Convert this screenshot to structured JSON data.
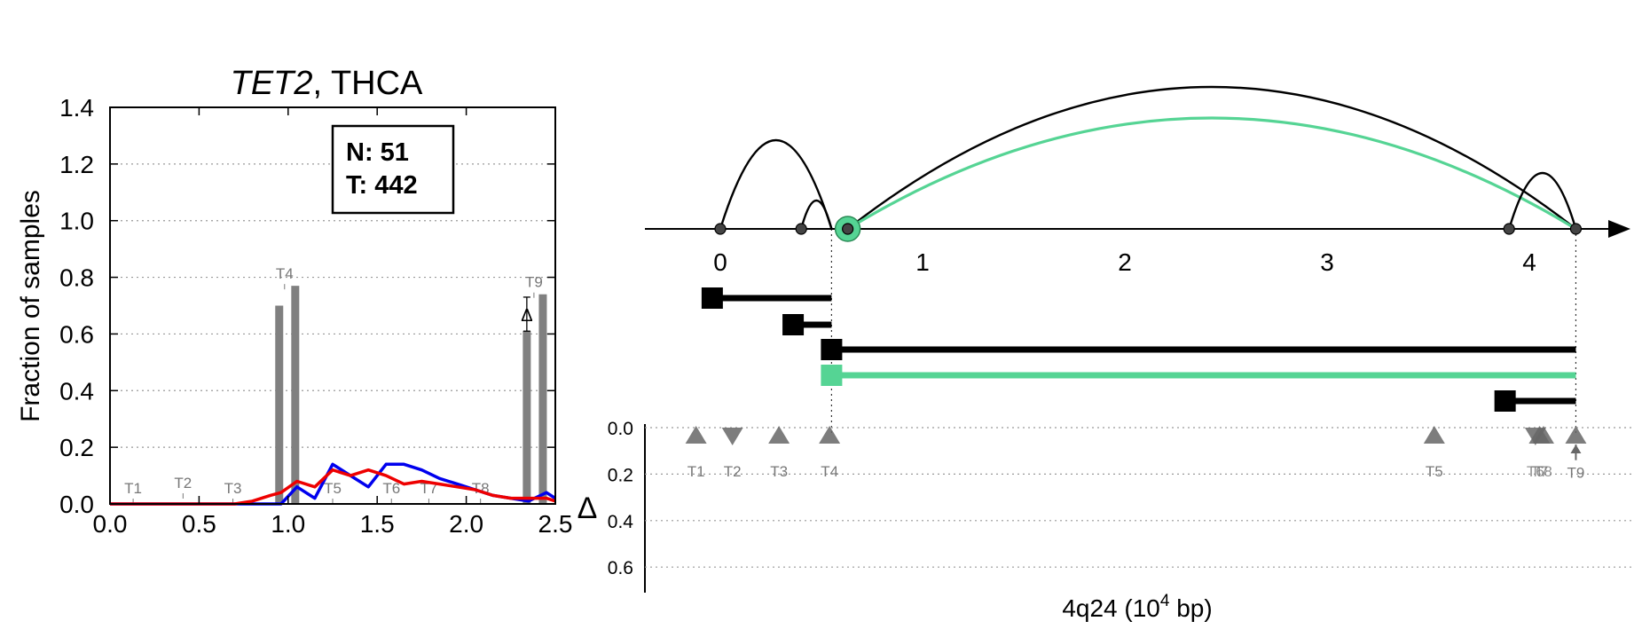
{
  "colors": {
    "bar": "#808080",
    "normal_line": "#0000ee",
    "tumor_line": "#ee0000",
    "highlight": "#55d494",
    "axis": "#000000",
    "grid": "#999999",
    "marker": "#666666",
    "marker_label": "#777777"
  },
  "chart_data": [
    {
      "type": "bar",
      "title_gene": "TET2",
      "title_rest": ", THCA",
      "ylabel": "Fraction of samples",
      "xlim": [
        0,
        2.5
      ],
      "ylim": [
        0,
        1.4
      ],
      "xticks": [
        "0.0",
        "0.5",
        "1.0",
        "1.5",
        "2.0",
        "2.5"
      ],
      "yticks": [
        "0.0",
        "0.2",
        "0.4",
        "0.6",
        "0.8",
        "1.0",
        "1.2",
        "1.4"
      ],
      "grid": "horizontal dotted",
      "counts_box": {
        "n_label": "N: 51",
        "t_label": "T: 442"
      },
      "transcript_labels": [
        {
          "label": "T1",
          "x": 0.13
        },
        {
          "label": "T2",
          "x": 0.41
        },
        {
          "label": "T3",
          "x": 0.69
        },
        {
          "label": "T4",
          "x": 0.98
        },
        {
          "label": "T5",
          "x": 1.25
        },
        {
          "label": "T6",
          "x": 1.58
        },
        {
          "label": "T7",
          "x": 1.79
        },
        {
          "label": "T8",
          "x": 2.08
        },
        {
          "label": "T9",
          "x": 2.38
        }
      ],
      "bars": [
        {
          "x": 0.95,
          "value": 0.7
        },
        {
          "x": 1.04,
          "value": 0.77
        },
        {
          "x": 2.34,
          "value": 0.61
        },
        {
          "x": 2.43,
          "value": 0.74
        }
      ],
      "delta_annotation": {
        "label": "Δ",
        "x": 2.34,
        "from": 0.61,
        "to": 0.73
      },
      "series": [
        {
          "name": "N",
          "color": "#0000ee",
          "x": [
            0.0,
            0.1,
            0.2,
            0.3,
            0.4,
            0.5,
            0.6,
            0.7,
            0.8,
            0.9,
            0.96,
            1.05,
            1.15,
            1.25,
            1.35,
            1.45,
            1.55,
            1.65,
            1.75,
            1.85,
            1.95,
            2.05,
            2.15,
            2.25,
            2.35,
            2.45,
            2.5
          ],
          "values": [
            0.0,
            0.0,
            0.0,
            0.0,
            0.0,
            0.0,
            0.0,
            0.0,
            0.0,
            0.0,
            0.0,
            0.06,
            0.02,
            0.14,
            0.1,
            0.06,
            0.14,
            0.14,
            0.12,
            0.09,
            0.07,
            0.05,
            0.03,
            0.02,
            0.01,
            0.04,
            0.02
          ]
        },
        {
          "name": "T",
          "color": "#ee0000",
          "x": [
            0.0,
            0.1,
            0.2,
            0.3,
            0.4,
            0.5,
            0.6,
            0.7,
            0.8,
            0.9,
            0.96,
            1.05,
            1.15,
            1.25,
            1.35,
            1.45,
            1.55,
            1.65,
            1.75,
            1.85,
            1.95,
            2.05,
            2.15,
            2.25,
            2.35,
            2.45,
            2.5
          ],
          "values": [
            0.0,
            0.0,
            0.0,
            0.0,
            0.0,
            0.0,
            0.0,
            0.0,
            0.01,
            0.03,
            0.04,
            0.08,
            0.06,
            0.12,
            0.1,
            0.12,
            0.1,
            0.07,
            0.08,
            0.07,
            0.06,
            0.05,
            0.03,
            0.02,
            0.02,
            0.02,
            0.01
          ]
        }
      ]
    },
    {
      "type": "scatter",
      "xlabel_main": "4q24 (10",
      "xlabel_exp": "4",
      "xlabel_tail": " bp)",
      "xlim": [
        -0.4,
        4.9
      ],
      "xticks": [
        {
          "label": "0",
          "value": 0
        },
        {
          "label": "1",
          "value": 1
        },
        {
          "label": "2",
          "value": 2
        },
        {
          "label": "3",
          "value": 3
        },
        {
          "label": "4",
          "value": 4
        }
      ],
      "sites": [
        0.0,
        0.4,
        0.63,
        3.9,
        4.23
      ],
      "highlight_site": 0.63,
      "arcs": [
        {
          "from": 0.0,
          "to": 0.55,
          "height": 1.0,
          "color": "black"
        },
        {
          "from": 0.4,
          "to": 0.55,
          "height": 0.32,
          "color": "black"
        },
        {
          "from": 0.63,
          "to": 4.23,
          "height": 1.6,
          "color": "black"
        },
        {
          "from": 0.63,
          "to": 4.23,
          "height": 1.25,
          "color": "green"
        },
        {
          "from": 3.9,
          "to": 4.23,
          "height": 0.63,
          "color": "black"
        }
      ],
      "dotted_guides": [
        0.55,
        4.23
      ],
      "transcripts": [
        {
          "start": -0.04,
          "end": 0.55,
          "color": "black"
        },
        {
          "start": 0.36,
          "end": 0.55,
          "color": "black"
        },
        {
          "start": 0.55,
          "end": 4.23,
          "color": "black"
        },
        {
          "start": 0.55,
          "end": 4.23,
          "color": "green"
        },
        {
          "start": 3.88,
          "end": 4.23,
          "color": "black"
        }
      ],
      "delta_axis": {
        "label": "Δ",
        "ylim": [
          0.0,
          0.7
        ],
        "yticks": [
          "0.0",
          "0.2",
          "0.4",
          "0.6"
        ]
      },
      "delta_markers": [
        {
          "label": "T1",
          "x": -0.12,
          "dir": "up"
        },
        {
          "label": "T2",
          "x": 0.06,
          "dir": "down"
        },
        {
          "label": "T3",
          "x": 0.29,
          "dir": "up"
        },
        {
          "label": "T4",
          "x": 0.54,
          "dir": "up"
        },
        {
          "label": "T5",
          "x": 3.53,
          "dir": "up"
        },
        {
          "label": "T6",
          "x": 4.03,
          "dir": "down"
        },
        {
          "label": "T7",
          "x": 4.05,
          "dir": "up"
        },
        {
          "label": "T8",
          "x": 4.07,
          "dir": "up"
        },
        {
          "label": "T9",
          "x": 4.23,
          "dir": "up",
          "arrow_to": 0.14
        }
      ]
    }
  ]
}
